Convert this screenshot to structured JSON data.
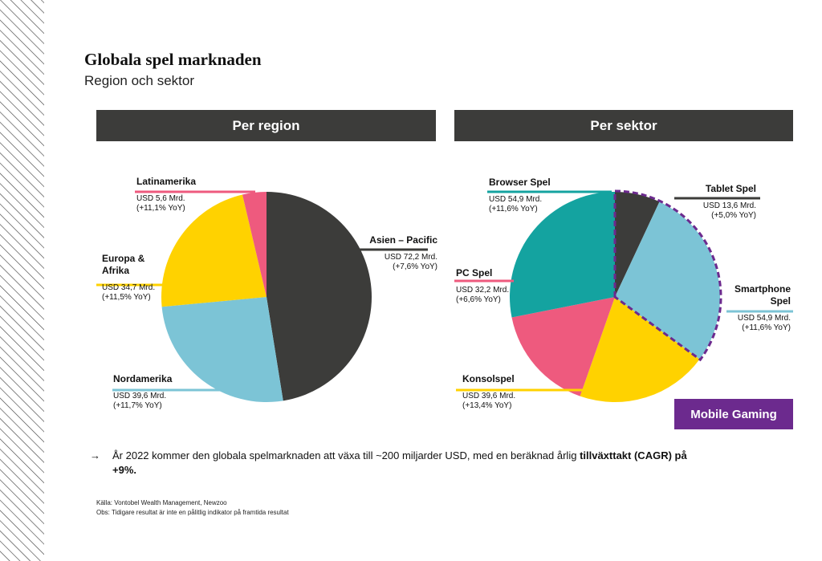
{
  "header": {
    "title": "Globala spel marknaden",
    "subtitle": "Region och sektor"
  },
  "chart_data": [
    {
      "type": "pie",
      "title": "Per region",
      "categories": [
        "Asien – Pacific",
        "Nordamerika",
        "Europa & Afrika",
        "Latinamerika"
      ],
      "values": [
        72.2,
        39.6,
        34.7,
        5.6
      ],
      "value_labels": [
        "USD 72,2 Mrd.",
        "USD 39,6 Mrd.",
        "USD 34,7 Mrd.",
        "USD 5,6 Mrd."
      ],
      "growth_labels": [
        "(+7,6% YoY)",
        "(+11,7% YoY)",
        "(+11,5% YoY)",
        "(+11,1% YoY)"
      ],
      "colors": [
        "#3c3c3a",
        "#7cc4d6",
        "#ffd200",
        "#ee5a7e"
      ]
    },
    {
      "type": "pie",
      "title": "Per sektor",
      "categories": [
        "Tablet Spel",
        "Smartphone Spel",
        "Konsolspel",
        "PC Spel",
        "Browser Spel"
      ],
      "values": [
        13.6,
        54.9,
        39.6,
        32.2,
        54.9
      ],
      "value_labels": [
        "USD 13,6 Mrd.",
        "USD 54,9 Mrd.",
        "USD 39,6 Mrd.",
        "USD 32,2 Mrd.",
        "USD 54,9 Mrd."
      ],
      "growth_labels": [
        "(+5,0% YoY)",
        "(+11,6% YoY)",
        "(+13,4% YoY)",
        "(+6,6% YoY)",
        "(+11,6% YoY)"
      ],
      "colors": [
        "#3c3c3a",
        "#7cc4d6",
        "#ffd200",
        "#ee5a7e",
        "#14a3a0"
      ]
    }
  ],
  "highlight": "Mobile Gaming",
  "note": {
    "arrow": "→",
    "text": "År 2022 kommer den globala spelmarknaden att växa till ~200 miljarder USD, med en beräknad årlig ",
    "bold": "tillväxttakt (CAGR) på +9%."
  },
  "sources": [
    "Källa: Vontobel Wealth Management, Newzoo",
    "Obs: Tidigare resultat är inte en pålitlig indikator på framtida resultat"
  ]
}
